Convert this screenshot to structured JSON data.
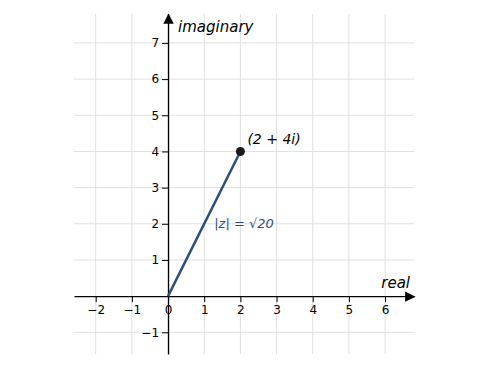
{
  "chart_data": {
    "type": "scatter",
    "xlabel": "real",
    "ylabel": "imaginary",
    "xlim": [
      -2.6,
      6.8
    ],
    "ylim": [
      -1.6,
      7.8
    ],
    "xticks": [
      {
        "value": -2,
        "label": "−2"
      },
      {
        "value": -1,
        "label": "−1"
      },
      0,
      1,
      2,
      3,
      4,
      5,
      6
    ],
    "yticks": [
      {
        "value": -1,
        "label": "−1"
      },
      1,
      2,
      3,
      4,
      5,
      6,
      7
    ],
    "grid": true,
    "series": [
      {
        "type": "line",
        "color": "#2e4f7a",
        "x": [
          0,
          2
        ],
        "values": [
          0,
          4
        ]
      },
      {
        "type": "scatter",
        "color": "#1a1a1a",
        "x": [
          2
        ],
        "values": [
          4
        ]
      }
    ],
    "annotations": [
      {
        "text": "(2 + 4i)",
        "color": "#000000"
      },
      {
        "text": "|z| = √20",
        "color": "#2e4f7a"
      }
    ]
  }
}
